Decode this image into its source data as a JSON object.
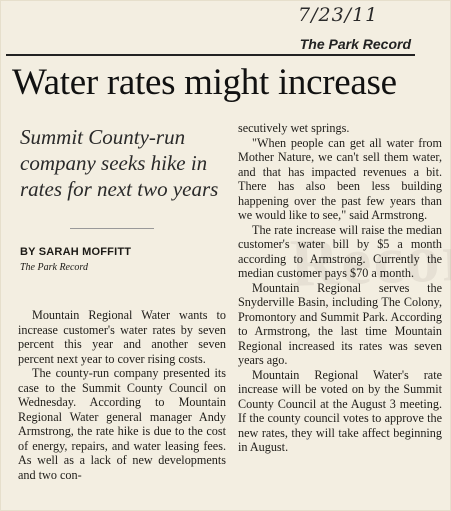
{
  "clipping": {
    "handwritten_date": "7/23/11",
    "publication": "The Park Record"
  },
  "article": {
    "headline": "Water rates might increase",
    "deck": "Summit County-run company seeks hike in rates for next two years",
    "byline": "BY SARAH MOFFITT",
    "byline_org": "The Park Record",
    "left_column": [
      "Mountain Regional Water wants to increase customer's water rates by seven percent this year and another seven percent next year to cover rising costs.",
      "The county-run company presented its case to the Summit County Council on Wednesday. According to Mountain Regional Water general manager Andy Armstrong, the rate hike is due to the cost of energy, repairs, and water leasing fees. As well as a lack of new developments and two con-"
    ],
    "right_column_continuation": "secutively wet springs.",
    "right_column": [
      "\"When people can get all water from Mother Nature, we can't sell them water, and that has impacted revenues a bit. There has also been less building happening over the past few years than we would like to see,\" said Armstrong.",
      "The rate increase will raise the median customer's water bill by $5 a month according to Armstrong. Currently the median customer pays $70 a month.",
      "Mountain Regional serves the Snyderville Basin, including The Colony, Promontory and Summit Park. According to Armstrong, the last time Mountain Regional increased its rates was seven years ago.",
      "Mountain Regional Water's rate increase will be voted on by the Summit County Council at the August 3 meeting. If the county council votes to approve the new rates, they will take affect beginning in August."
    ]
  }
}
